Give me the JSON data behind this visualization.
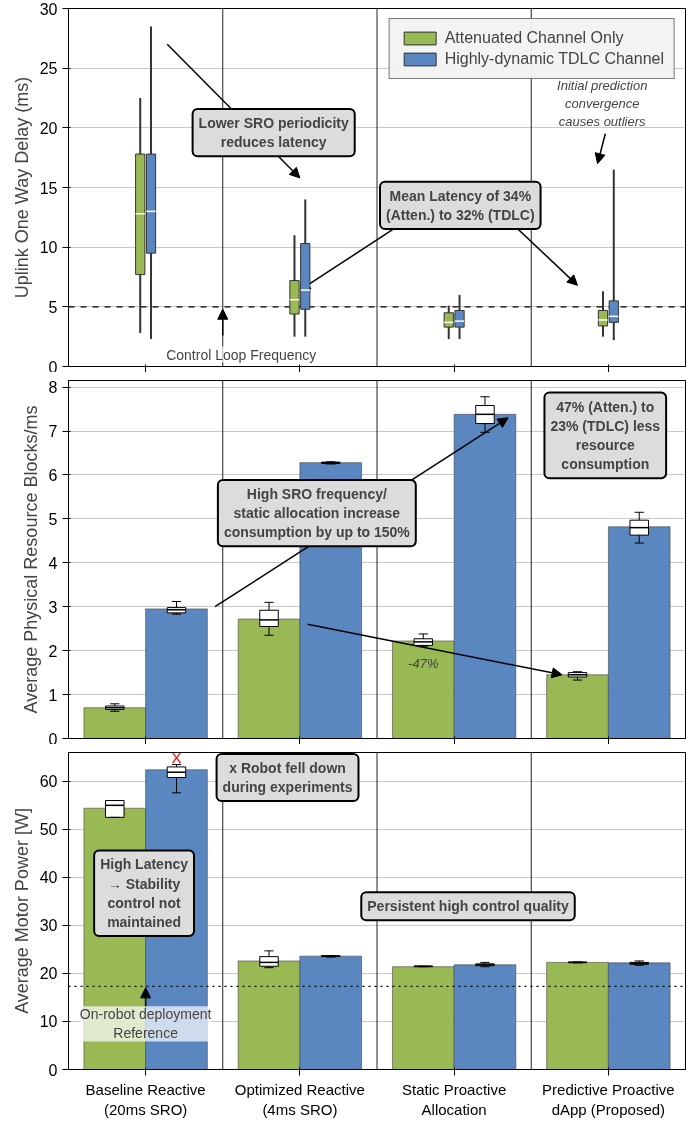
{
  "chart_data": [
    {
      "type": "box",
      "ylabel": "Uplink One Way Delay (ms)",
      "categories": [
        "Baseline Reactive\n(20ms SRO)",
        "Optimized Reactive\n(4ms SRO)",
        "Static Proactive\nAllocation",
        "Predictive Proactive\ndApp (Proposed)"
      ],
      "ylim": [
        0,
        30
      ],
      "yticks": [
        0,
        5,
        10,
        15,
        20,
        25,
        30
      ],
      "grid": "y",
      "legend": "top right",
      "tick_labels": "y",
      "series": [
        {
          "name": "Attenuated Channel Only",
          "color": "#98b954",
          "boxes": [
            {
              "low": 2.8,
              "q1": 7.7,
              "median": 12.8,
              "q3": 17.8,
              "high": 22.5
            },
            {
              "low": 2.5,
              "q1": 4.4,
              "median": 5.6,
              "q3": 7.2,
              "high": 11
            },
            {
              "low": 2.3,
              "q1": 3.3,
              "median": 3.7,
              "q3": 4.5,
              "high": 5.1
            },
            {
              "low": 2.5,
              "q1": 3.4,
              "median": 3.9,
              "q3": 4.7,
              "high": 6.3
            }
          ]
        },
        {
          "name": "Highly-dynamic TDLC Channel",
          "color": "#5b87c0",
          "boxes": [
            {
              "low": 2.3,
              "q1": 9.5,
              "median": 13,
              "q3": 17.8,
              "high": 28.5
            },
            {
              "low": 2.5,
              "q1": 4.8,
              "median": 6.4,
              "q3": 10.3,
              "high": 14
            },
            {
              "low": 2.3,
              "q1": 3.3,
              "median": 3.8,
              "q3": 4.7,
              "high": 6
            },
            {
              "low": 2.2,
              "q1": 3.7,
              "median": 4.2,
              "q3": 5.5,
              "high": 16.5
            }
          ]
        }
      ],
      "ref_lines": [
        {
          "axis": "y",
          "value": 5,
          "label": "Control Loop Frequency",
          "line_style": "dashed"
        }
      ],
      "annotations": [
        "Lower SRO periodicity\nreduces latency",
        {
          "text": "Mean Latency of 34%\n(Atten.) to 32% (TDLC)",
          "x": "Optimized Reactive\n(4ms SRO)",
          "y": 6.4
        },
        "Initial prediction\nconvergence\ncauses outliers"
      ]
    },
    {
      "type": "bar",
      "ylabel": "Average Physical Resource Blocks/ms",
      "categories": [
        "Baseline Reactive\n(20ms SRO)",
        "Optimized Reactive\n(4ms SRO)",
        "Static Proactive\nAllocation",
        "Predictive Proactive\ndApp (Proposed)"
      ],
      "ylim": [
        0,
        8.15
      ],
      "yticks": [
        0,
        1,
        2,
        3,
        4,
        5,
        6,
        7,
        8
      ],
      "grid": "y",
      "tick_labels": "y",
      "series": [
        {
          "color": "#98b954",
          "values": [
            0.7,
            2.72,
            2.22,
            1.45
          ]
        },
        {
          "color": "#5b87c0",
          "values": [
            2.95,
            6.28,
            7.38,
            4.82
          ]
        },
        {
          "type": "box",
          "color": "#ffffff",
          "boxes": [
            {
              "low": 0.62,
              "q1": 0.66,
              "median": 0.7,
              "q3": 0.74,
              "high": 0.79
            },
            {
              "low": 2.35,
              "q1": 2.55,
              "median": 2.7,
              "q3": 2.92,
              "high": 3.1
            },
            {
              "low": 2.1,
              "q1": 2.12,
              "median": 2.2,
              "q3": 2.27,
              "high": 2.38
            },
            {
              "low": 1.33,
              "q1": 1.4,
              "median": 1.45,
              "q3": 1.5,
              "high": 1.52
            }
          ]
        },
        {
          "type": "box",
          "color": "#ffffff",
          "boxes": [
            {
              "low": 2.83,
              "q1": 2.86,
              "median": 2.93,
              "q3": 2.98,
              "high": 3.12
            },
            {
              "low": 6.25,
              "q1": 6.26,
              "median": 6.28,
              "q3": 6.29,
              "high": 6.3
            },
            {
              "low": 6.97,
              "q1": 7.17,
              "median": 7.38,
              "q3": 7.58,
              "high": 7.78
            },
            {
              "low": 4.45,
              "q1": 4.63,
              "median": 4.8,
              "q3": 4.97,
              "high": 5.15
            }
          ]
        }
      ],
      "annotations": [
        "High SRO frequency/\nstatic allocation increase\nconsumption by up to 150%",
        "47% (Atten.) to\n23% (TDLC) less\nresource\nconsumption",
        "-47%"
      ]
    },
    {
      "type": "bar",
      "ylabel": "Average Motor Power [W]",
      "categories": [
        "Baseline Reactive\n(20ms SRO)",
        "Optimized Reactive\n(4ms SRO)",
        "Static Proactive\nAllocation",
        "Predictive Proactive\ndApp (Proposed)"
      ],
      "ylim": [
        0,
        66
      ],
      "yticks": [
        0,
        10,
        20,
        30,
        40,
        50,
        60
      ],
      "grid": "y",
      "series": [
        {
          "color": "#98b954",
          "values": [
            54.4,
            22.6,
            21.4,
            22.3
          ]
        },
        {
          "color": "#5b87c0",
          "values": [
            62.4,
            23.6,
            21.8,
            22.2
          ]
        },
        {
          "type": "box",
          "color": "#ffffff",
          "boxes": [
            {
              "low": 52.5,
              "q1": 52.5,
              "median": 55,
              "q3": 56,
              "high": 56
            },
            {
              "low": 21.2,
              "q1": 21.5,
              "median": 22.3,
              "q3": 23.5,
              "high": 24.7
            },
            {
              "low": 21.4,
              "q1": 21.4,
              "median": 21.5,
              "q3": 21.5,
              "high": 21.5
            },
            {
              "low": 22.2,
              "q1": 22.25,
              "median": 22.3,
              "q3": 22.35,
              "high": 22.4
            }
          ]
        },
        {
          "type": "box",
          "color": "#ffffff",
          "boxes": [
            {
              "low": 57.6,
              "q1": 60.8,
              "median": 61.9,
              "q3": 63,
              "high": 63.5
            },
            {
              "low": 23.4,
              "q1": 23.5,
              "median": 23.6,
              "q3": 23.7,
              "high": 23.7
            },
            {
              "low": 21.4,
              "q1": 21.6,
              "median": 21.8,
              "q3": 22,
              "high": 22.3
            },
            {
              "low": 21.7,
              "q1": 21.9,
              "median": 22.1,
              "q3": 22.3,
              "high": 22.6
            }
          ]
        }
      ],
      "ref_lines": [
        {
          "axis": "y",
          "value": 17.3,
          "label": "On-robot deployment\nReference",
          "line_style": "dotted"
        }
      ],
      "annotations": [
        "x Robot fell down\nduring experiments",
        "High Latency\n→ Stability\ncontrol not\nmaintained",
        "Persistent high control quality",
        "X"
      ]
    }
  ]
}
